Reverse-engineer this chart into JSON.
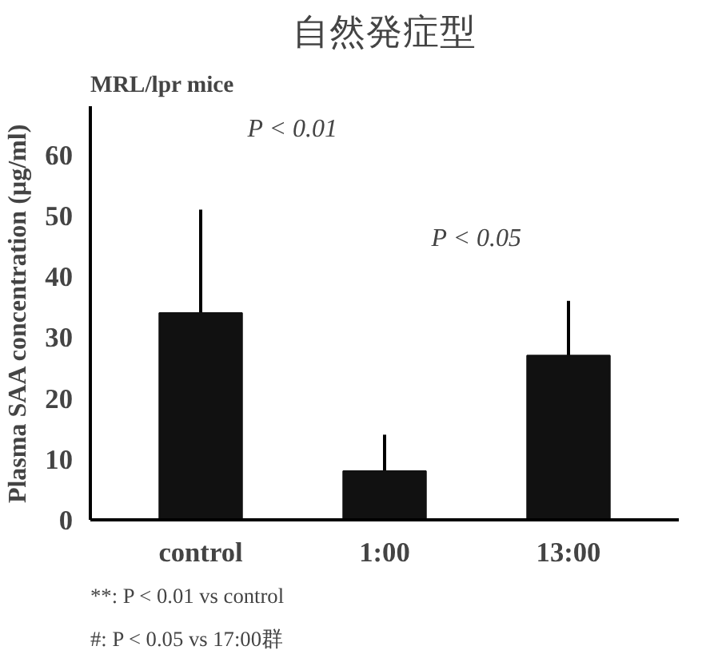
{
  "chart_data": {
    "type": "bar",
    "title": "自然発症型",
    "subtitle": "MRL/lpr mice",
    "ylabel": "Plasma SAA concentration (µg/ml)",
    "categories": [
      "control",
      "1:00",
      "13:00"
    ],
    "values": [
      34,
      8,
      27
    ],
    "errors": [
      [
        34,
        51
      ],
      [
        8,
        14
      ],
      [
        27,
        36
      ]
    ],
    "color": "#111111",
    "ylim": [
      0,
      68
    ],
    "yticks": [
      0,
      10,
      20,
      30,
      40,
      50,
      60
    ],
    "grid": false,
    "annotations": [
      "P < 0.01",
      "P < 0.05",
      "**: P < 0.01 vs control",
      "#: P < 0.05 vs 17:00群"
    ]
  }
}
